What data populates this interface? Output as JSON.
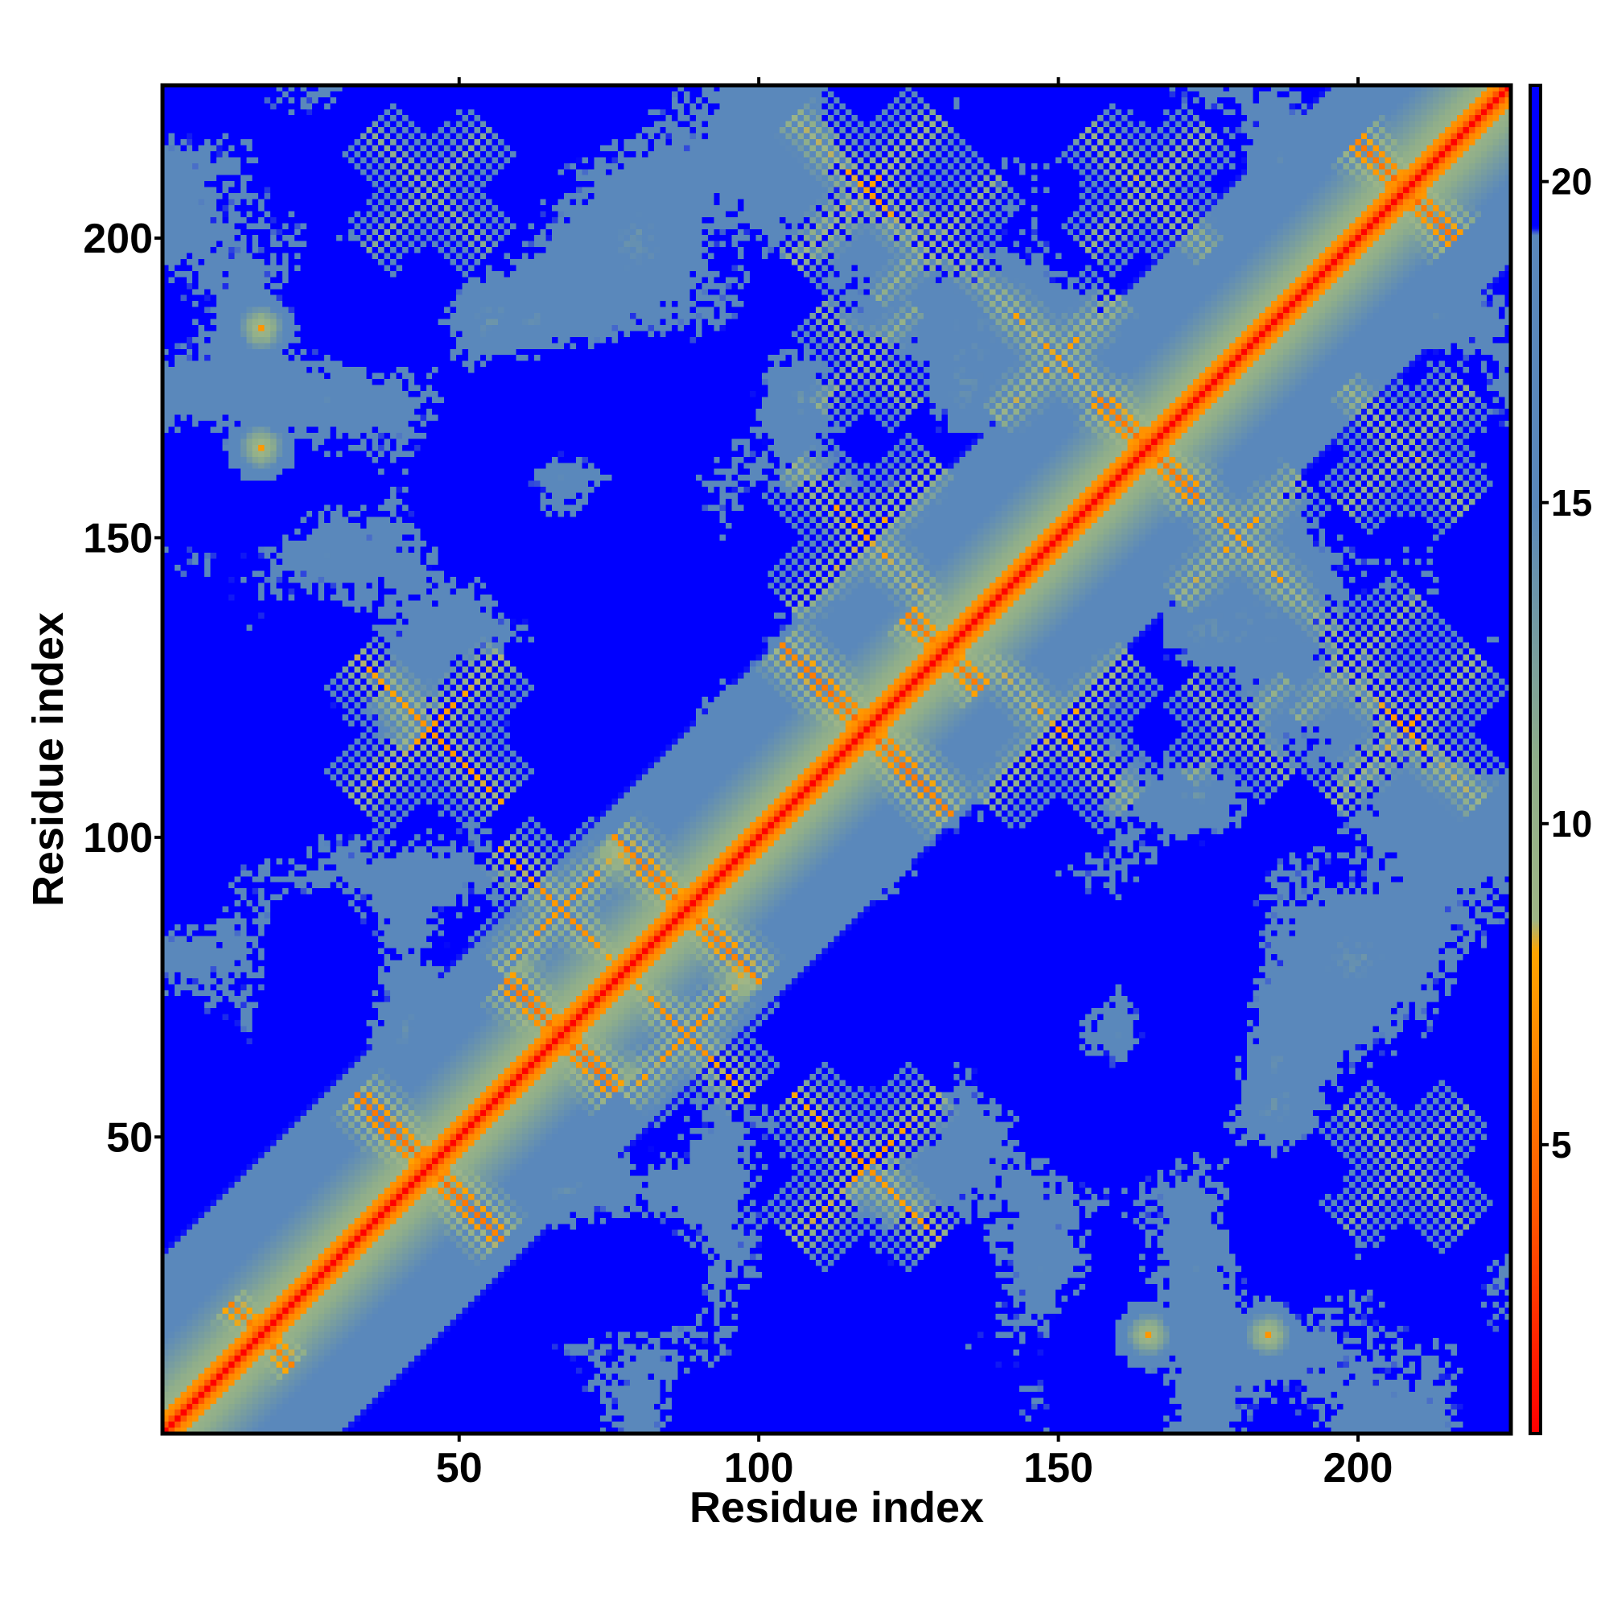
{
  "chart_data": {
    "type": "heatmap",
    "title": "",
    "xlabel": "Residue index",
    "ylabel": "Residue index",
    "n_residues": 225,
    "xlim": [
      1,
      225
    ],
    "ylim": [
      1,
      225
    ],
    "x_ticks": [
      50,
      100,
      150,
      200
    ],
    "y_ticks": [
      50,
      100,
      150,
      200
    ],
    "colorbar": {
      "ticks": [
        5,
        10,
        15,
        20
      ],
      "range": [
        0.5,
        21.5
      ],
      "stops": [
        {
          "value": 0.5,
          "color": "#ff0000"
        },
        {
          "value": 4.0,
          "color": "#ff5a00"
        },
        {
          "value": 8.0,
          "color": "#ffa500"
        },
        {
          "value": 8.5,
          "color": "#9fb687"
        },
        {
          "value": 11.0,
          "color": "#8fae8a"
        },
        {
          "value": 15.0,
          "color": "#5a88bb"
        },
        {
          "value": 19.2,
          "color": "#5a88bb"
        },
        {
          "value": 19.3,
          "color": "#0000ff"
        },
        {
          "value": 21.5,
          "color": "#0000ff"
        }
      ]
    },
    "value_description": "Inter-residue distance in Angstrom; values >= 19.3 rendered in pure blue",
    "secondary_contacts": [
      {
        "i": 45,
        "j": 45,
        "kind": "anti",
        "len": 12,
        "d": 4.5
      },
      {
        "i": 67,
        "j": 67,
        "kind": "anti",
        "len": 9,
        "d": 4.6
      },
      {
        "i": 88,
        "j": 88,
        "kind": "anti",
        "len": 12,
        "d": 5.0
      },
      {
        "i": 118,
        "j": 118,
        "kind": "anti",
        "len": 14,
        "d": 4.5
      },
      {
        "i": 131,
        "j": 131,
        "kind": "anti",
        "len": 6,
        "d": 5.0
      },
      {
        "i": 165,
        "j": 165,
        "kind": "anti",
        "len": 8,
        "d": 4.8
      },
      {
        "i": 208,
        "j": 208,
        "kind": "anti",
        "len": 8,
        "d": 4.6
      },
      {
        "i": 17,
        "j": 17,
        "kind": "anti",
        "len": 5,
        "d": 5.5
      },
      {
        "i": 45,
        "j": 118,
        "kind": "cross",
        "len": 12,
        "d": 6.5
      },
      {
        "i": 45,
        "j": 208,
        "kind": "cross",
        "len": 10,
        "d": 9.5
      },
      {
        "i": 118,
        "j": 208,
        "kind": "cross",
        "len": 12,
        "d": 7.0
      },
      {
        "i": 67,
        "j": 88,
        "kind": "cross",
        "len": 10,
        "d": 6.5
      },
      {
        "i": 118,
        "j": 150,
        "kind": "cross",
        "len": 12,
        "d": 7.0
      },
      {
        "i": 150,
        "j": 180,
        "kind": "cross",
        "len": 10,
        "d": 7.0
      },
      {
        "i": 165,
        "j": 208,
        "kind": "cross",
        "len": 10,
        "d": 8.0
      },
      {
        "i": 130,
        "j": 200,
        "kind": "cross",
        "len": 10,
        "d": 8.5
      },
      {
        "i": 118,
        "j": 180,
        "kind": "cross",
        "len": 8,
        "d": 9.0
      },
      {
        "i": 17,
        "j": 185,
        "kind": "point",
        "len": 3,
        "d": 7.0
      },
      {
        "i": 17,
        "j": 165,
        "kind": "point",
        "len": 3,
        "d": 7.0
      },
      {
        "i": 165,
        "j": 17,
        "kind": "point",
        "len": 3,
        "d": 7.0
      },
      {
        "i": 185,
        "j": 17,
        "kind": "point",
        "len": 3,
        "d": 7.0
      }
    ]
  }
}
